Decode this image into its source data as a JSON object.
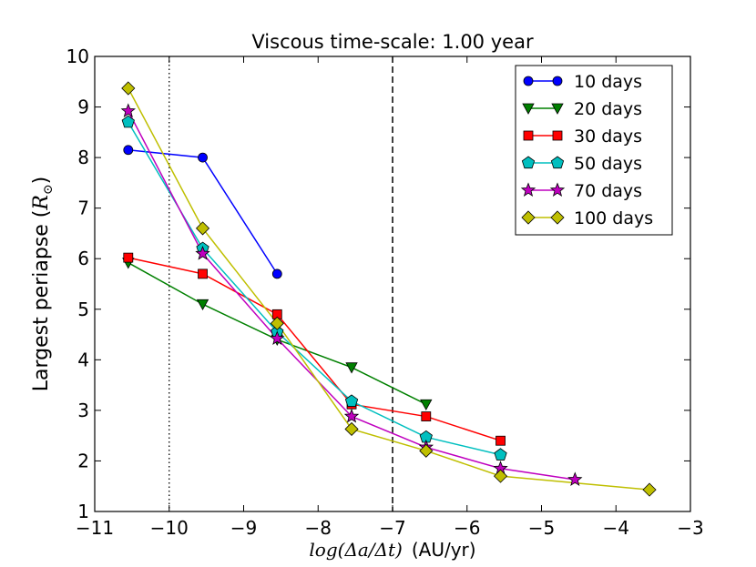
{
  "chart_data": {
    "type": "line",
    "title": "Viscous time-scale: 1.00 year",
    "xlabel_math": "log(Δa/Δt)",
    "xlabel_unit": "(AU/yr)",
    "ylabel_text": "Largest periapse (",
    "ylabel_math": "R",
    "ylabel_sub": "⊙",
    "ylabel_close": ")",
    "xlim": [
      -11,
      -3
    ],
    "ylim": [
      1,
      10
    ],
    "xticks": [
      -11,
      -10,
      -9,
      -8,
      -7,
      -6,
      -5,
      -4,
      -3
    ],
    "yticks": [
      1,
      2,
      3,
      4,
      5,
      6,
      7,
      8,
      9,
      10
    ],
    "xtick_labels": [
      "−11",
      "−10",
      "−9",
      "−8",
      "−7",
      "−6",
      "−5",
      "−4",
      "−3"
    ],
    "ytick_labels": [
      "1",
      "2",
      "3",
      "4",
      "5",
      "6",
      "7",
      "8",
      "9",
      "10"
    ],
    "vlines": [
      {
        "x": -10,
        "style": "dotted"
      },
      {
        "x": -7,
        "style": "dashed"
      }
    ],
    "legend_position": "top-right",
    "series": [
      {
        "name": "10 days",
        "color": "#0000ff",
        "marker": "circle",
        "x": [
          -10.55,
          -9.55,
          -8.55
        ],
        "y": [
          8.15,
          8.0,
          5.7
        ]
      },
      {
        "name": "20 days",
        "color": "#008000",
        "marker": "triangle-down",
        "x": [
          -10.55,
          -9.55,
          -8.55,
          -7.55,
          -6.55
        ],
        "y": [
          5.92,
          5.1,
          4.4,
          3.85,
          3.12
        ]
      },
      {
        "name": "30 days",
        "color": "#ff0000",
        "marker": "square",
        "x": [
          -10.55,
          -9.55,
          -8.55,
          -7.55,
          -6.55,
          -5.55
        ],
        "y": [
          6.02,
          5.7,
          4.9,
          3.12,
          2.88,
          2.4
        ]
      },
      {
        "name": "50 days",
        "color": "#00bfbf",
        "marker": "pentagon",
        "x": [
          -10.55,
          -9.55,
          -8.55,
          -7.55,
          -6.55,
          -5.55
        ],
        "y": [
          8.7,
          6.2,
          4.55,
          3.18,
          2.47,
          2.12
        ]
      },
      {
        "name": "70 days",
        "color": "#bf00bf",
        "marker": "star",
        "x": [
          -10.55,
          -9.55,
          -8.55,
          -7.55,
          -6.55,
          -5.55,
          -4.55
        ],
        "y": [
          8.92,
          6.1,
          4.42,
          2.88,
          2.27,
          1.85,
          1.63
        ]
      },
      {
        "name": "100 days",
        "color": "#bfbf00",
        "marker": "diamond",
        "x": [
          -10.55,
          -9.55,
          -8.55,
          -7.55,
          -6.55,
          -5.55,
          -3.55
        ],
        "y": [
          9.37,
          6.6,
          4.72,
          2.63,
          2.2,
          1.7,
          1.43
        ]
      }
    ]
  }
}
